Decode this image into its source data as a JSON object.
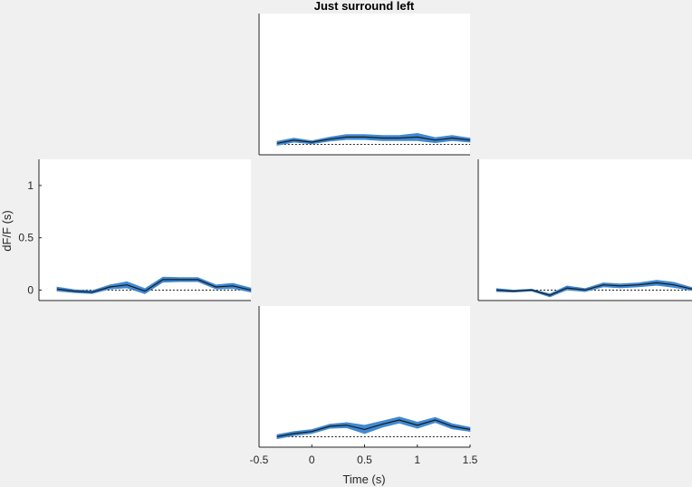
{
  "chart_data": [
    {
      "type": "line",
      "panel": "top",
      "title": "Just surround left",
      "xlim": [
        -0.5,
        1.5
      ],
      "ylim": [
        -0.1,
        1.25
      ],
      "x": [
        -0.33,
        -0.17,
        0,
        0.17,
        0.33,
        0.5,
        0.67,
        0.83,
        1.0,
        1.17,
        1.33,
        1.5
      ],
      "series": [
        {
          "mean": [
            0.01,
            0.04,
            0.02,
            0.05,
            0.07,
            0.07,
            0.06,
            0.06,
            0.07,
            0.04,
            0.06,
            0.04
          ],
          "sem": [
            0.02,
            0.02,
            0.015,
            0.02,
            0.025,
            0.025,
            0.025,
            0.025,
            0.035,
            0.025,
            0.025,
            0.02
          ]
        }
      ],
      "baseline": 0
    },
    {
      "type": "line",
      "panel": "left",
      "title": "",
      "ylabel": "dF/F (s)",
      "yticks": [
        0,
        0.5,
        1
      ],
      "ytick_labels": [
        "0",
        "0.5",
        "1"
      ],
      "xlim": [
        -0.5,
        1.5
      ],
      "ylim": [
        -0.1,
        1.25
      ],
      "x": [
        -0.33,
        -0.17,
        0,
        0.17,
        0.33,
        0.5,
        0.67,
        0.83,
        1.0,
        1.17,
        1.33,
        1.5
      ],
      "series": [
        {
          "mean": [
            0.01,
            -0.01,
            -0.02,
            0.03,
            0.05,
            -0.01,
            0.1,
            0.1,
            0.1,
            0.03,
            0.04,
            0.0
          ],
          "sem": [
            0.02,
            0.015,
            0.015,
            0.02,
            0.03,
            0.025,
            0.025,
            0.02,
            0.02,
            0.02,
            0.025,
            0.02
          ]
        }
      ],
      "baseline": 0
    },
    {
      "type": "line",
      "panel": "right",
      "title": "",
      "xlim": [
        -0.5,
        1.5
      ],
      "ylim": [
        -0.1,
        1.25
      ],
      "x": [
        -0.33,
        -0.17,
        0,
        0.17,
        0.33,
        0.5,
        0.67,
        0.83,
        1.0,
        1.17,
        1.33,
        1.5
      ],
      "series": [
        {
          "mean": [
            0.0,
            -0.01,
            0.0,
            -0.05,
            0.02,
            0.0,
            0.05,
            0.04,
            0.05,
            0.07,
            0.05,
            0.01
          ],
          "sem": [
            0.015,
            0.01,
            0.01,
            0.015,
            0.02,
            0.015,
            0.02,
            0.02,
            0.02,
            0.025,
            0.025,
            0.015
          ]
        }
      ],
      "baseline": 0
    },
    {
      "type": "line",
      "panel": "bottom",
      "title": "",
      "xlabel": "Time (s)",
      "xticks": [
        -0.5,
        0,
        0.5,
        1,
        1.5
      ],
      "xtick_labels": [
        "-0.5",
        "0",
        "0.5",
        "1",
        "1.5"
      ],
      "xlim": [
        -0.5,
        1.5
      ],
      "ylim": [
        -0.1,
        1.25
      ],
      "x": [
        -0.33,
        -0.17,
        0,
        0.17,
        0.33,
        0.5,
        0.67,
        0.83,
        1.0,
        1.17,
        1.33,
        1.5
      ],
      "series": [
        {
          "mean": [
            0.0,
            0.03,
            0.05,
            0.1,
            0.11,
            0.07,
            0.12,
            0.16,
            0.11,
            0.16,
            0.1,
            0.07
          ],
          "sem": [
            0.02,
            0.02,
            0.02,
            0.02,
            0.025,
            0.04,
            0.03,
            0.03,
            0.03,
            0.025,
            0.025,
            0.02
          ]
        }
      ],
      "baseline": 0
    }
  ],
  "colors": {
    "figure_bg": "#f0f0f0",
    "axes_bg": "#ffffff",
    "sem_fill": "#3f89d3",
    "mean_line": "#1a1a1a",
    "baseline": "#000000",
    "axis": "#262626"
  }
}
